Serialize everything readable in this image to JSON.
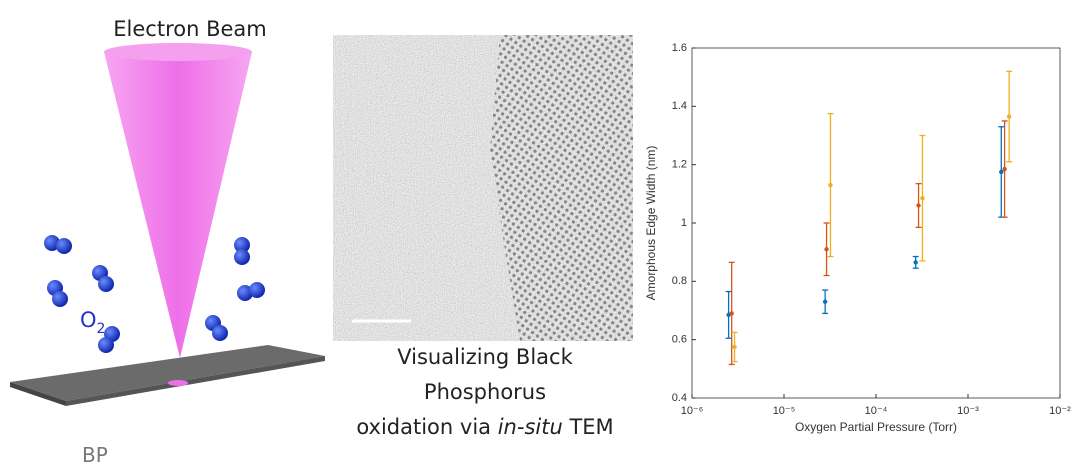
{
  "schematic": {
    "beam_label": "Electron Beam",
    "gas_symbol": "O",
    "gas_subscript": "2",
    "substrate_label": "BP"
  },
  "caption": {
    "line1": "Visualizing Black",
    "line2": "Phosphorus",
    "line3_start": "oxidation via",
    "line3_italic": "in-situ",
    "line3_end": "TEM"
  },
  "chart_data": {
    "type": "errorbar",
    "xlabel": "Oxygen Partial Pressure (Torr)",
    "ylabel": "Amorphous Edge Width (nm)",
    "xscale": "log",
    "xlim": [
      1e-06,
      0.01
    ],
    "xticks": [
      {
        "value": 1e-06,
        "label": "10⁻⁶"
      },
      {
        "value": 1e-05,
        "label": "10⁻⁵"
      },
      {
        "value": 0.0001,
        "label": "10⁻⁴"
      },
      {
        "value": 0.001,
        "label": "10⁻³"
      },
      {
        "value": 0.01,
        "label": "10⁻²"
      }
    ],
    "ylim": [
      0.4,
      1.6
    ],
    "yticks": [
      0.4,
      0.6,
      0.8,
      1,
      1.2,
      1.4,
      1.6
    ],
    "grid": false,
    "series": [
      {
        "color": "#0072bd",
        "x": [
          2.5e-06,
          2.8e-05,
          0.00027,
          0.0023
        ],
        "values": [
          0.685,
          0.73,
          0.865,
          1.175
        ],
        "errors": [
          0.08,
          0.04,
          0.02,
          0.155
        ]
      },
      {
        "color": "#d95319",
        "x": [
          2.7e-06,
          2.9e-05,
          0.00029,
          0.0025
        ],
        "values": [
          0.69,
          0.91,
          1.06,
          1.185
        ],
        "errors": [
          0.175,
          0.09,
          0.075,
          0.165
        ]
      },
      {
        "color": "#edb120",
        "x": [
          2.9e-06,
          3.2e-05,
          0.00032,
          0.0028
        ],
        "values": [
          0.575,
          1.13,
          1.085,
          1.365
        ],
        "errors": [
          0.05,
          0.245,
          0.215,
          0.155
        ]
      }
    ]
  }
}
